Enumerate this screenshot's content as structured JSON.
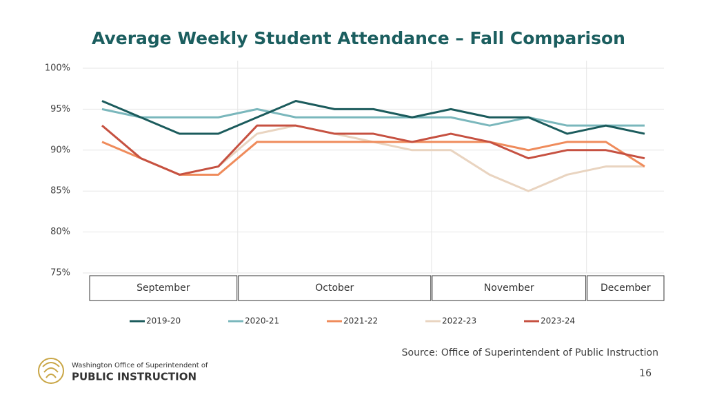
{
  "chart_data": {
    "type": "line",
    "title": "Average Weekly Student Attendance – Fall Comparison",
    "month_groups": [
      {
        "label": "September",
        "count": 4
      },
      {
        "label": "October",
        "count": 5
      },
      {
        "label": "November",
        "count": 4
      },
      {
        "label": "December",
        "count": 2
      }
    ],
    "categories": [
      null,
      null,
      null,
      null,
      null,
      null,
      null,
      null,
      null,
      null,
      null,
      null,
      null,
      null,
      null
    ],
    "series": [
      {
        "name": "2019-20",
        "color": "#1b5b5c",
        "values": [
          96,
          94,
          92,
          92,
          94,
          96,
          95,
          95,
          94,
          95,
          94,
          94,
          92,
          93,
          92
        ]
      },
      {
        "name": "2020-21",
        "color": "#7ab7bc",
        "values": [
          95,
          94,
          94,
          94,
          95,
          94,
          94,
          94,
          94,
          94,
          93,
          94,
          93,
          93,
          93
        ]
      },
      {
        "name": "2021-22",
        "color": "#ef8b5b",
        "values": [
          91,
          89,
          87,
          87,
          91,
          91,
          91,
          91,
          91,
          91,
          91,
          90,
          91,
          91,
          88
        ]
      },
      {
        "name": "2022-23",
        "color": "#e9d4c0",
        "values": [
          93,
          89,
          87,
          88,
          92,
          93,
          92,
          91,
          90,
          90,
          87,
          85,
          87,
          88,
          88
        ]
      },
      {
        "name": "2023-24",
        "color": "#c65141",
        "values": [
          93,
          89,
          87,
          88,
          93,
          93,
          92,
          92,
          91,
          92,
          91,
          89,
          90,
          90,
          89
        ]
      }
    ],
    "ylim": [
      75,
      100
    ],
    "yticks": [
      {
        "value": 75,
        "label": "75%"
      },
      {
        "value": 80,
        "label": "80%"
      },
      {
        "value": 85,
        "label": "85%"
      },
      {
        "value": 90,
        "label": "90%"
      },
      {
        "value": 95,
        "label": "95%"
      },
      {
        "value": 100,
        "label": "100%"
      }
    ],
    "grid": true,
    "legend": "bottom",
    "source": "Source: Office of Superintendent of Public Instruction"
  },
  "footer": {
    "logo_line1": "Washington Office of Superintendent of",
    "logo_line2": "PUBLIC INSTRUCTION",
    "page_number": "16"
  }
}
